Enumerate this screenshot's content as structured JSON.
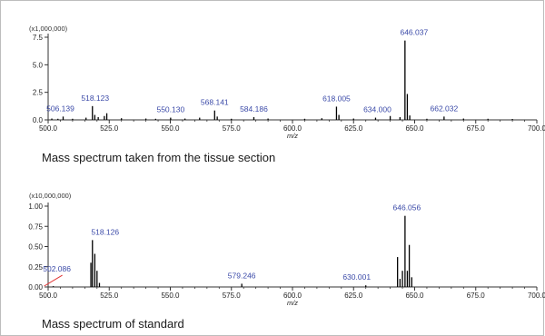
{
  "chart_data": [
    {
      "type": "bar",
      "title": "Mass spectrum taken from the tissue section",
      "scale_label": "(x1,000,000)",
      "xlabel": "m/z",
      "ylabel": "",
      "xlim": [
        500,
        700
      ],
      "ylim": [
        0,
        7.5
      ],
      "xticks": [
        "500.0",
        "525.0",
        "550.0",
        "575.0",
        "600.0",
        "625.0",
        "650.0",
        "675.0",
        "700.0"
      ],
      "yticks": [
        "0.0",
        "2.5",
        "5.0",
        "7.5"
      ],
      "peaks": [
        {
          "x": 501.5,
          "y": 0.12
        },
        {
          "x": 504.0,
          "y": 0.1
        },
        {
          "x": 506.139,
          "y": 0.3,
          "label": "506.139"
        },
        {
          "x": 510.0,
          "y": 0.1
        },
        {
          "x": 515.5,
          "y": 0.2
        },
        {
          "x": 518.123,
          "y": 1.25,
          "label": "518.123"
        },
        {
          "x": 519.1,
          "y": 0.45
        },
        {
          "x": 520.5,
          "y": 0.25
        },
        {
          "x": 523.0,
          "y": 0.35
        },
        {
          "x": 524.0,
          "y": 0.6
        },
        {
          "x": 530.0,
          "y": 0.15
        },
        {
          "x": 540.0,
          "y": 0.12
        },
        {
          "x": 544.0,
          "y": 0.1
        },
        {
          "x": 550.13,
          "y": 0.2,
          "label": "550.130"
        },
        {
          "x": 556.0,
          "y": 0.12
        },
        {
          "x": 562.0,
          "y": 0.2
        },
        {
          "x": 568.141,
          "y": 0.85,
          "label": "568.141"
        },
        {
          "x": 569.2,
          "y": 0.3
        },
        {
          "x": 575.0,
          "y": 0.1
        },
        {
          "x": 584.186,
          "y": 0.25,
          "label": "584.186"
        },
        {
          "x": 590.0,
          "y": 0.12
        },
        {
          "x": 605.0,
          "y": 0.1
        },
        {
          "x": 612.0,
          "y": 0.15
        },
        {
          "x": 618.005,
          "y": 1.2,
          "label": "618.005"
        },
        {
          "x": 619.0,
          "y": 0.45
        },
        {
          "x": 625.0,
          "y": 0.12
        },
        {
          "x": 634.0,
          "y": 0.2,
          "label": "634.000"
        },
        {
          "x": 640.0,
          "y": 0.35
        },
        {
          "x": 644.0,
          "y": 0.25
        },
        {
          "x": 646.037,
          "y": 7.2,
          "label": "646.037"
        },
        {
          "x": 647.0,
          "y": 2.35
        },
        {
          "x": 648.0,
          "y": 0.4
        },
        {
          "x": 655.0,
          "y": 0.1
        },
        {
          "x": 662.032,
          "y": 0.3,
          "label": "662.032"
        },
        {
          "x": 670.0,
          "y": 0.12
        },
        {
          "x": 680.0,
          "y": 0.1
        },
        {
          "x": 690.0,
          "y": 0.08
        }
      ]
    },
    {
      "type": "bar",
      "title": "Mass spectrum of standard",
      "scale_label": "(x10,000,000)",
      "xlabel": "m/z",
      "ylabel": "",
      "xlim": [
        500,
        700
      ],
      "ylim": [
        0,
        1.0
      ],
      "xticks": [
        "500.0",
        "525.0",
        "550.0",
        "575.0",
        "600.0",
        "625.0",
        "650.0",
        "675.0",
        "700.0"
      ],
      "yticks": [
        "0.00",
        "0.25",
        "0.50",
        "0.75",
        "1.00"
      ],
      "peaks": [
        {
          "x": 502.086,
          "y": 0.01,
          "label": "502.086"
        },
        {
          "x": 517.5,
          "y": 0.3
        },
        {
          "x": 518.126,
          "y": 0.58,
          "label": "518.126"
        },
        {
          "x": 519.1,
          "y": 0.41
        },
        {
          "x": 520.0,
          "y": 0.2
        },
        {
          "x": 521.0,
          "y": 0.05
        },
        {
          "x": 579.246,
          "y": 0.04,
          "label": "579.246"
        },
        {
          "x": 630.001,
          "y": 0.02,
          "label": "630.001"
        },
        {
          "x": 643.0,
          "y": 0.37
        },
        {
          "x": 644.0,
          "y": 0.1
        },
        {
          "x": 645.0,
          "y": 0.2
        },
        {
          "x": 646.056,
          "y": 0.88,
          "label": "646.056"
        },
        {
          "x": 647.0,
          "y": 0.2
        },
        {
          "x": 647.8,
          "y": 0.52
        },
        {
          "x": 648.8,
          "y": 0.12
        }
      ]
    }
  ],
  "colors": {
    "peak": "#000000",
    "label": "#3b4aa8",
    "axis": "#333333",
    "annotation_line": "#e03030",
    "frame": "#bdbdbd"
  }
}
